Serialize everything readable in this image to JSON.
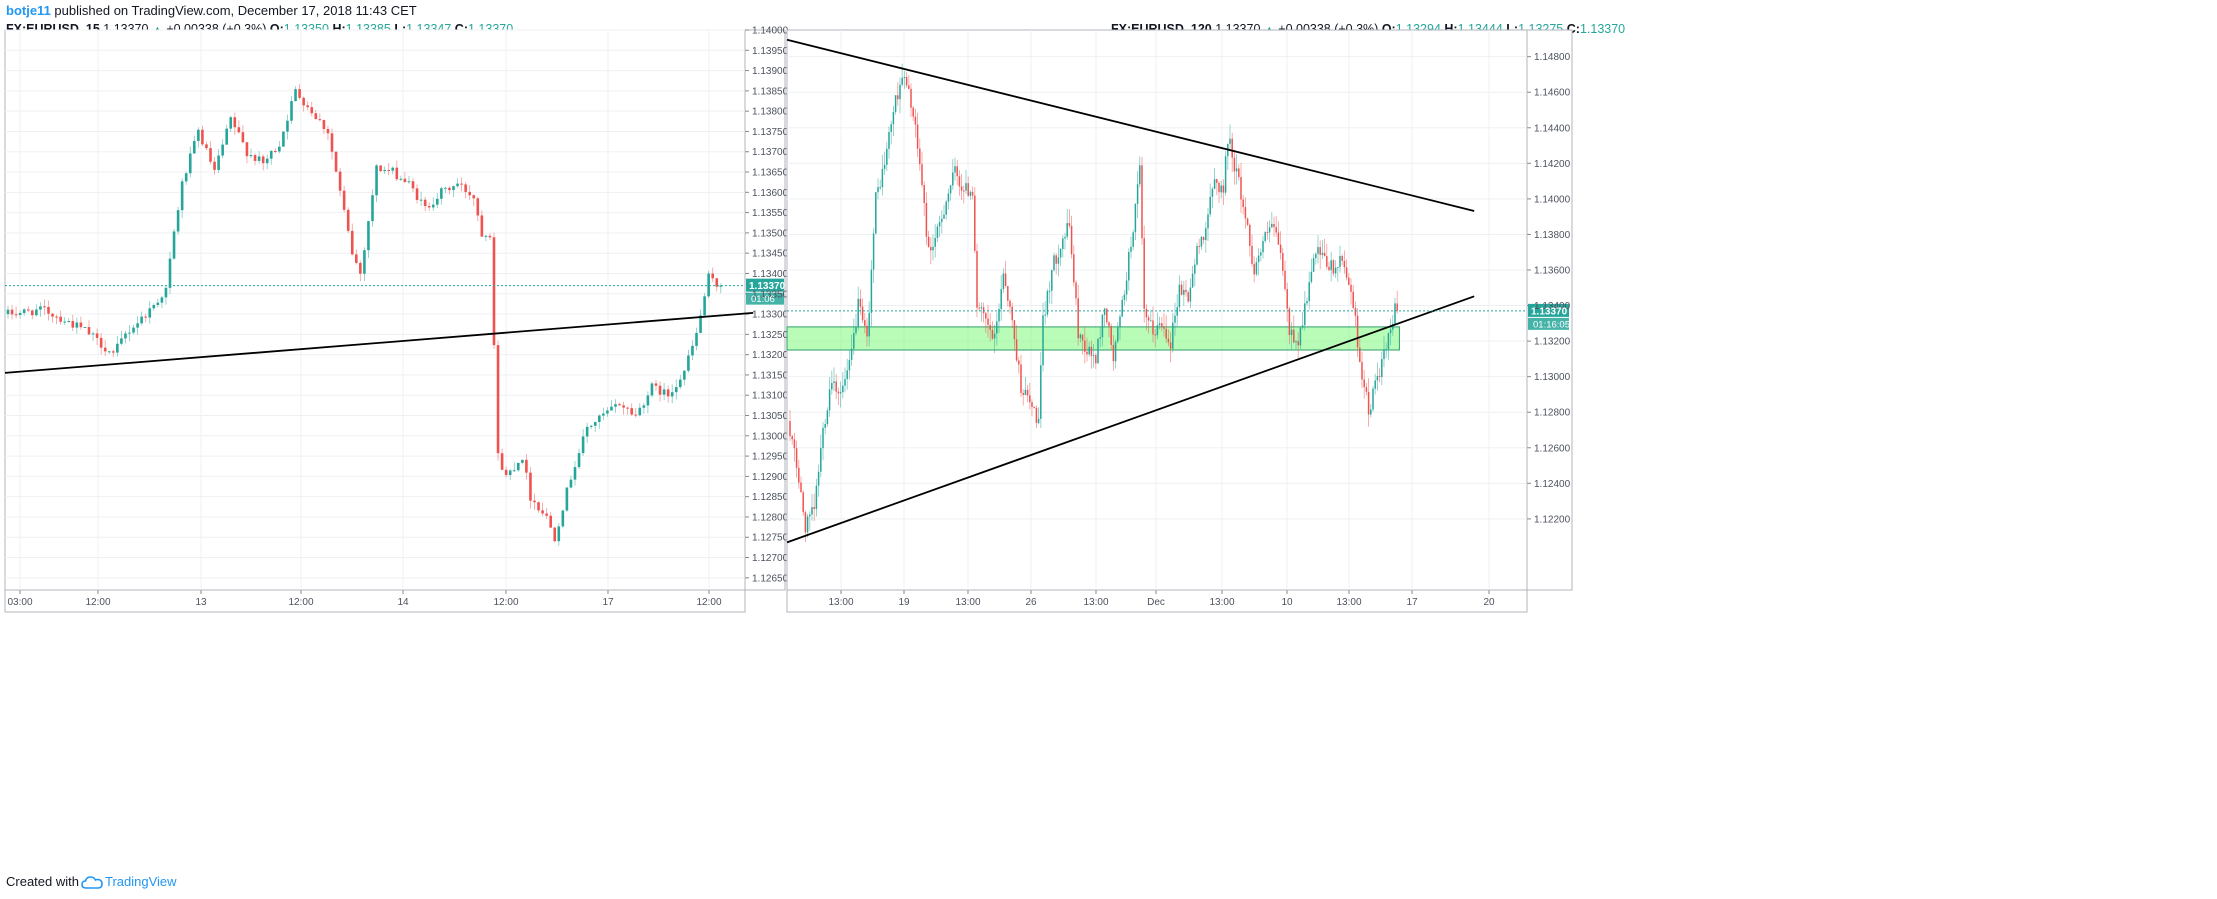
{
  "header": {
    "user": "botje11",
    "published_text": "published on TradingView.com, December 17, 2018 11:43 CET"
  },
  "footer": {
    "created_with": "Created with",
    "brand": "TradingView"
  },
  "colors": {
    "up": "#26a69a",
    "down": "#ef5350",
    "grid": "#eef0f3",
    "line": "#000000",
    "zone_fill": "#7dfa7d",
    "price_tag": "#26a69a"
  },
  "chart_data": [
    {
      "type": "candlestick",
      "symbol": "FX:EURUSD, 15",
      "last": "1.13370",
      "change_text": "+0.00338 (+0.3%)",
      "ohlc": {
        "O": "1.13350",
        "H": "1.13385",
        "L": "1.13347",
        "C": "1.13370"
      },
      "ylim": [
        1.1262,
        1.14
      ],
      "y_ticks": [
        "1.12650",
        "1.12700",
        "1.12750",
        "1.12800",
        "1.12850",
        "1.12900",
        "1.12950",
        "1.13000",
        "1.13050",
        "1.13100",
        "1.13150",
        "1.13200",
        "1.13250",
        "1.13300",
        "1.13350",
        "1.13400",
        "1.13450",
        "1.13500",
        "1.13550",
        "1.13600",
        "1.13650",
        "1.13700",
        "1.13750",
        "1.13800",
        "1.13850",
        "1.13900",
        "1.13950",
        "1.14000"
      ],
      "x_ticks": [
        "03:00",
        "12:00",
        "13",
        "12:00",
        "14",
        "12:00",
        "17",
        "12:00"
      ],
      "price_tag": "1.13370",
      "countdown": "01:06",
      "path_keypoints": [
        [
          0,
          1.133
        ],
        [
          10,
          1.1331
        ],
        [
          20,
          1.1326
        ],
        [
          27,
          1.132
        ],
        [
          30,
          1.1325
        ],
        [
          36,
          1.1331
        ],
        [
          40,
          1.1336
        ],
        [
          42,
          1.135
        ],
        [
          44,
          1.1362
        ],
        [
          48,
          1.1375
        ],
        [
          52,
          1.1365
        ],
        [
          56,
          1.1378
        ],
        [
          60,
          1.137
        ],
        [
          64,
          1.1367
        ],
        [
          68,
          1.1372
        ],
        [
          72,
          1.1385
        ],
        [
          76,
          1.138
        ],
        [
          80,
          1.1375
        ],
        [
          83,
          1.136
        ],
        [
          86,
          1.1345
        ],
        [
          88,
          1.134
        ],
        [
          92,
          1.1366
        ],
        [
          96,
          1.1365
        ],
        [
          100,
          1.1362
        ],
        [
          104,
          1.1356
        ],
        [
          108,
          1.136
        ],
        [
          112,
          1.1362
        ],
        [
          116,
          1.1359
        ],
        [
          118,
          1.135
        ],
        [
          120,
          1.135
        ],
        [
          122,
          1.1295
        ],
        [
          124,
          1.129
        ],
        [
          128,
          1.1295
        ],
        [
          130,
          1.1285
        ],
        [
          134,
          1.128
        ],
        [
          136,
          1.1275
        ],
        [
          140,
          1.129
        ],
        [
          144,
          1.1302
        ],
        [
          148,
          1.1305
        ],
        [
          152,
          1.1308
        ],
        [
          156,
          1.1305
        ],
        [
          160,
          1.1312
        ],
        [
          164,
          1.131
        ],
        [
          168,
          1.1316
        ],
        [
          171,
          1.1325
        ],
        [
          174,
          1.1339
        ],
        [
          176,
          1.1337
        ]
      ],
      "trendline": {
        "start": [
          0,
          1.13155
        ],
        "end": [
          184,
          1.13303
        ]
      }
    },
    {
      "type": "candlestick",
      "symbol": "FX:EURUSD, 120",
      "last": "1.13370",
      "change_text": "+0.00338 (+0.3%)",
      "ohlc": {
        "O": "1.13294",
        "H": "1.13444",
        "L": "1.13275",
        "C": "1.13370"
      },
      "ylim": [
        1.118,
        1.1495
      ],
      "y_ticks": [
        "1.12200",
        "1.12400",
        "1.12600",
        "1.12800",
        "1.13000",
        "1.13200",
        "1.13400",
        "1.13600",
        "1.13800",
        "1.14000",
        "1.14200",
        "1.14400",
        "1.14600",
        "1.14800"
      ],
      "x_ticks": [
        "13:00",
        "19",
        "13:00",
        "26",
        "13:00",
        "Dec",
        "13:00",
        "10",
        "13:00",
        "17",
        "20"
      ],
      "price_tag": "1.13370",
      "countdown": "01:16:05",
      "path_keypoints": [
        [
          0,
          1.1275
        ],
        [
          4,
          1.125
        ],
        [
          8,
          1.1215
        ],
        [
          12,
          1.1225
        ],
        [
          16,
          1.127
        ],
        [
          20,
          1.13
        ],
        [
          24,
          1.129
        ],
        [
          28,
          1.1305
        ],
        [
          32,
          1.134
        ],
        [
          36,
          1.132
        ],
        [
          40,
          1.14
        ],
        [
          44,
          1.142
        ],
        [
          48,
          1.145
        ],
        [
          52,
          1.147
        ],
        [
          56,
          1.1455
        ],
        [
          60,
          1.142
        ],
        [
          64,
          1.137
        ],
        [
          68,
          1.138
        ],
        [
          72,
          1.14
        ],
        [
          76,
          1.1415
        ],
        [
          80,
          1.1405
        ],
        [
          84,
          1.1405
        ],
        [
          86,
          1.134
        ],
        [
          90,
          1.133
        ],
        [
          94,
          1.132
        ],
        [
          98,
          1.136
        ],
        [
          102,
          1.133
        ],
        [
          106,
          1.1295
        ],
        [
          110,
          1.1285
        ],
        [
          114,
          1.1275
        ],
        [
          116,
          1.133
        ],
        [
          120,
          1.136
        ],
        [
          124,
          1.1375
        ],
        [
          128,
          1.1385
        ],
        [
          132,
          1.1325
        ],
        [
          136,
          1.1315
        ],
        [
          140,
          1.131
        ],
        [
          144,
          1.134
        ],
        [
          148,
          1.131
        ],
        [
          152,
          1.134
        ],
        [
          156,
          1.1375
        ],
        [
          160,
          1.1415
        ],
        [
          162,
          1.1335
        ],
        [
          166,
          1.1325
        ],
        [
          170,
          1.133
        ],
        [
          174,
          1.132
        ],
        [
          178,
          1.135
        ],
        [
          182,
          1.1345
        ],
        [
          186,
          1.137
        ],
        [
          190,
          1.1385
        ],
        [
          194,
          1.141
        ],
        [
          198,
          1.1405
        ],
        [
          200,
          1.1435
        ],
        [
          204,
          1.1415
        ],
        [
          208,
          1.139
        ],
        [
          212,
          1.136
        ],
        [
          216,
          1.1375
        ],
        [
          220,
          1.1385
        ],
        [
          224,
          1.137
        ],
        [
          228,
          1.1325
        ],
        [
          232,
          1.132
        ],
        [
          236,
          1.1345
        ],
        [
          240,
          1.137
        ],
        [
          244,
          1.1365
        ],
        [
          248,
          1.136
        ],
        [
          252,
          1.1365
        ],
        [
          256,
          1.135
        ],
        [
          260,
          1.131
        ],
        [
          264,
          1.128
        ],
        [
          268,
          1.13
        ],
        [
          272,
          1.1315
        ],
        [
          276,
          1.1337
        ]
      ],
      "trendlines": [
        {
          "start": [
            0,
            1.14895
          ],
          "end": [
            311,
            1.13932
          ]
        },
        {
          "start": [
            0,
            1.12068
          ],
          "end": [
            311,
            1.13452
          ]
        }
      ],
      "zone": {
        "x_range": [
          0,
          277
        ],
        "y_range": [
          1.1315,
          1.1328
        ]
      }
    }
  ]
}
